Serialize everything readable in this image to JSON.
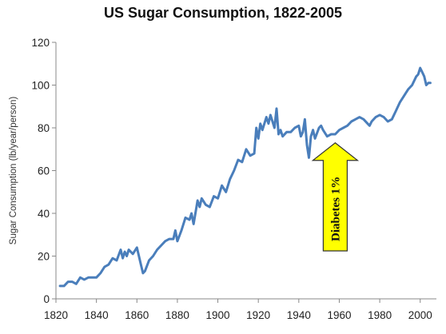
{
  "chart_data": {
    "type": "line",
    "title": "US Sugar Consumption, 1822-2005",
    "xlabel": "",
    "ylabel": "Sugar Consumption (lb/year/person)",
    "xlim": [
      1820,
      2008
    ],
    "ylim": [
      0,
      120
    ],
    "x_ticks": [
      1820,
      1840,
      1860,
      1880,
      1900,
      1920,
      1940,
      1960,
      1980,
      2000
    ],
    "y_ticks": [
      0,
      20,
      40,
      60,
      80,
      100,
      120
    ],
    "grid": false,
    "legend": "none",
    "line_color": "#4a7ebb",
    "series": [
      {
        "x": [
          1822,
          1824,
          1826,
          1828,
          1830,
          1832,
          1834,
          1836,
          1838,
          1840,
          1842,
          1844,
          1846,
          1848,
          1850,
          1852,
          1853,
          1854,
          1855,
          1856,
          1858,
          1860,
          1861,
          1862,
          1863,
          1864,
          1866,
          1868,
          1870,
          1872,
          1874,
          1876,
          1878,
          1879,
          1880,
          1882,
          1884,
          1886,
          1887,
          1888,
          1890,
          1891,
          1892,
          1894,
          1896,
          1898,
          1900,
          1902,
          1904,
          1906,
          1908,
          1910,
          1912,
          1914,
          1916,
          1918,
          1919,
          1920,
          1921,
          1922,
          1924,
          1925,
          1926,
          1928,
          1929,
          1930,
          1931,
          1932,
          1934,
          1936,
          1938,
          1940,
          1941,
          1942,
          1943,
          1944,
          1945,
          1946,
          1947,
          1948,
          1950,
          1951,
          1952,
          1954,
          1956,
          1958,
          1960,
          1962,
          1964,
          1966,
          1968,
          1970,
          1972,
          1974,
          1975,
          1976,
          1978,
          1980,
          1982,
          1984,
          1986,
          1988,
          1990,
          1992,
          1994,
          1996,
          1998,
          1999,
          2000,
          2001,
          2002,
          2003,
          2004,
          2005
        ],
        "y": [
          6,
          6,
          8,
          8,
          7,
          10,
          9,
          10,
          10,
          10,
          12,
          15,
          16,
          19,
          18,
          23,
          19,
          22,
          20,
          23,
          21,
          24,
          20,
          16,
          12,
          13,
          18,
          20,
          23,
          25,
          27,
          28,
          28,
          32,
          27,
          32,
          38,
          37,
          40,
          35,
          46,
          43,
          47,
          44,
          43,
          48,
          47,
          53,
          50,
          56,
          60,
          65,
          64,
          70,
          67,
          68,
          80,
          75,
          82,
          79,
          85,
          82,
          86,
          80,
          89,
          77,
          79,
          76,
          78,
          78,
          80,
          81,
          76,
          78,
          84,
          72,
          66,
          76,
          79,
          75,
          80,
          81,
          79,
          76,
          77,
          77,
          79,
          80,
          81,
          83,
          84,
          85,
          84,
          82,
          81,
          83,
          85,
          86,
          85,
          83,
          84,
          88,
          92,
          95,
          98,
          100,
          104,
          105,
          108,
          106,
          104,
          100,
          101,
          101
        ]
      }
    ],
    "annotation": {
      "text": "Diabetes 1%",
      "x": 1958,
      "y_tip": 73,
      "color": "#ffff00"
    }
  }
}
